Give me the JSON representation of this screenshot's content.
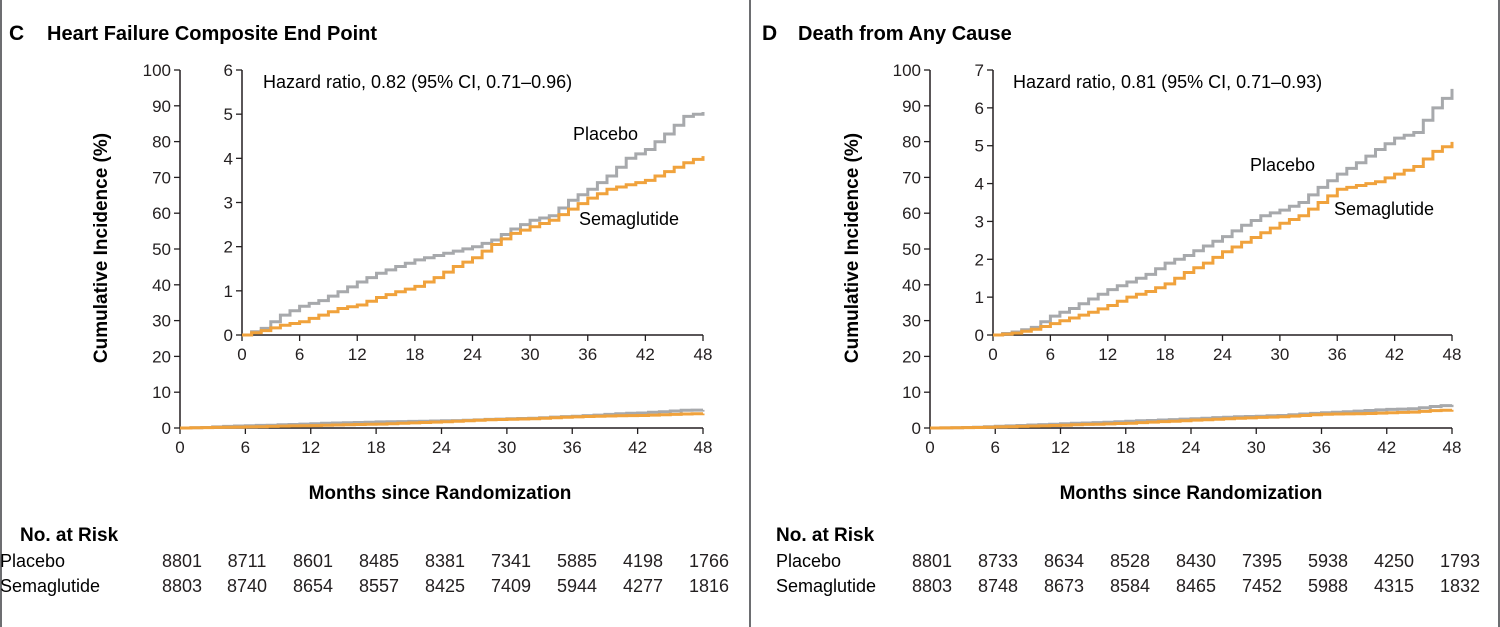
{
  "colors": {
    "placebo": "#a7a9ac",
    "semaglutide": "#f0a23c",
    "axis": "#231f20",
    "border": "#6d6e71"
  },
  "panels": [
    {
      "letter": "C",
      "title": "Heart Failure Composite End Point",
      "ylabel": "Cumulative Incidence (%)",
      "xlabel": "Months since Randomization",
      "hazard": "Hazard ratio, 0.82 (95% CI, 0.71–0.96)",
      "at_risk_title": "No. at Risk",
      "at_risk": [
        {
          "label": "Placebo",
          "values": [
            "8801",
            "8711",
            "8601",
            "8485",
            "8381",
            "7341",
            "5885",
            "4198",
            "1766"
          ]
        },
        {
          "label": "Semaglutide",
          "values": [
            "8803",
            "8740",
            "8654",
            "8557",
            "8425",
            "7409",
            "5944",
            "4277",
            "1816"
          ]
        }
      ]
    },
    {
      "letter": "D",
      "title": "Death from Any Cause",
      "ylabel": "Cumulative Incidence (%)",
      "xlabel": "Months since Randomization",
      "hazard": "Hazard ratio, 0.81 (95% CI, 0.71–0.93)",
      "at_risk_title": "No. at Risk",
      "at_risk": [
        {
          "label": "Placebo",
          "values": [
            "8801",
            "8733",
            "8634",
            "8528",
            "8430",
            "7395",
            "5938",
            "4250",
            "1793"
          ]
        },
        {
          "label": "Semaglutide",
          "values": [
            "8803",
            "8748",
            "8673",
            "8584",
            "8465",
            "7452",
            "5988",
            "4315",
            "1832"
          ]
        }
      ]
    }
  ],
  "chart_data": [
    {
      "type": "line",
      "title": "Heart Failure Composite End Point",
      "xlabel": "Months since Randomization",
      "ylabel": "Cumulative Incidence (%)",
      "xlim": [
        0,
        48
      ],
      "xticks": [
        0,
        6,
        12,
        18,
        24,
        30,
        36,
        42,
        48
      ],
      "ylim": [
        0,
        100
      ],
      "yticks": [
        0,
        10,
        20,
        30,
        40,
        50,
        60,
        70,
        80,
        90,
        100
      ],
      "inset": {
        "xlim": [
          0,
          48
        ],
        "ylim": [
          0,
          6
        ],
        "yticks": [
          0,
          1,
          2,
          3,
          4,
          5,
          6
        ],
        "xticks": [
          0,
          6,
          12,
          18,
          24,
          30,
          36,
          42,
          48
        ]
      },
      "series": [
        {
          "name": "Placebo",
          "x": [
            0,
            2,
            4,
            6,
            8,
            10,
            12,
            14,
            16,
            18,
            20,
            22,
            24,
            26,
            28,
            30,
            32,
            34,
            36,
            38,
            40,
            42,
            44,
            46,
            48
          ],
          "values": [
            0,
            0.15,
            0.45,
            0.65,
            0.78,
            0.98,
            1.2,
            1.4,
            1.55,
            1.7,
            1.8,
            1.9,
            2.0,
            2.15,
            2.4,
            2.6,
            2.7,
            3.05,
            3.3,
            3.6,
            4.0,
            4.2,
            4.55,
            4.95,
            5.05
          ]
        },
        {
          "name": "Semaglutide",
          "x": [
            0,
            2,
            4,
            6,
            8,
            10,
            12,
            14,
            16,
            18,
            20,
            22,
            24,
            26,
            28,
            30,
            32,
            34,
            36,
            38,
            40,
            42,
            44,
            46,
            48
          ],
          "values": [
            0,
            0.1,
            0.22,
            0.3,
            0.45,
            0.6,
            0.68,
            0.85,
            0.98,
            1.1,
            1.3,
            1.55,
            1.75,
            2.05,
            2.3,
            2.45,
            2.6,
            2.85,
            3.1,
            3.3,
            3.4,
            3.5,
            3.7,
            3.9,
            4.05
          ]
        }
      ],
      "annotations": [
        "Hazard ratio, 0.82 (95% CI, 0.71–0.96)",
        "Placebo",
        "Semaglutide"
      ]
    },
    {
      "type": "line",
      "title": "Death from Any Cause",
      "xlabel": "Months since Randomization",
      "ylabel": "Cumulative Incidence (%)",
      "xlim": [
        0,
        48
      ],
      "xticks": [
        0,
        6,
        12,
        18,
        24,
        30,
        36,
        42,
        48
      ],
      "ylim": [
        0,
        100
      ],
      "yticks": [
        0,
        10,
        20,
        30,
        40,
        50,
        60,
        70,
        80,
        90,
        100
      ],
      "inset": {
        "xlim": [
          0,
          48
        ],
        "ylim": [
          0,
          7
        ],
        "yticks": [
          0,
          1,
          2,
          3,
          4,
          5,
          6,
          7
        ],
        "xticks": [
          0,
          6,
          12,
          18,
          24,
          30,
          36,
          42,
          48
        ]
      },
      "series": [
        {
          "name": "Placebo",
          "x": [
            0,
            2,
            4,
            6,
            8,
            10,
            12,
            14,
            16,
            18,
            20,
            22,
            24,
            26,
            28,
            30,
            32,
            34,
            36,
            38,
            40,
            42,
            44,
            46,
            48
          ],
          "values": [
            0,
            0.08,
            0.2,
            0.5,
            0.7,
            0.95,
            1.2,
            1.4,
            1.6,
            1.9,
            2.1,
            2.35,
            2.6,
            2.9,
            3.15,
            3.3,
            3.5,
            3.9,
            4.25,
            4.55,
            4.9,
            5.2,
            5.35,
            6.0,
            6.5
          ]
        },
        {
          "name": "Semaglutide",
          "x": [
            0,
            2,
            4,
            6,
            8,
            10,
            12,
            14,
            16,
            18,
            20,
            22,
            24,
            26,
            28,
            30,
            32,
            34,
            36,
            38,
            40,
            42,
            44,
            46,
            48
          ],
          "values": [
            0,
            0.05,
            0.15,
            0.3,
            0.45,
            0.6,
            0.78,
            1.0,
            1.15,
            1.35,
            1.65,
            1.9,
            2.2,
            2.45,
            2.7,
            2.95,
            3.15,
            3.5,
            3.85,
            3.95,
            4.05,
            4.25,
            4.45,
            4.85,
            5.1
          ]
        }
      ],
      "annotations": [
        "Hazard ratio, 0.81 (95% CI, 0.71–0.93)",
        "Placebo",
        "Semaglutide"
      ]
    }
  ]
}
